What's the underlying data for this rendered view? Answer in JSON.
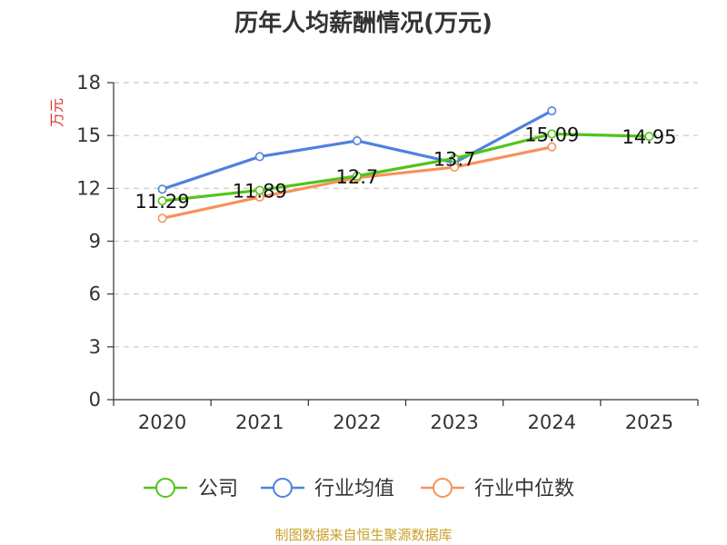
{
  "chart_data": {
    "type": "line",
    "title": "历年人均薪酬情况(万元)",
    "ylabel": "万元",
    "xlabel": "",
    "categories": [
      "2020",
      "2021",
      "2022",
      "2023",
      "2024",
      "2025"
    ],
    "ylim": [
      0,
      18
    ],
    "yticks": [
      0,
      3,
      6,
      9,
      12,
      15,
      18
    ],
    "grid": true,
    "legend_position": "bottom",
    "series": [
      {
        "name": "公司",
        "color": "#52c41a",
        "values": [
          11.29,
          11.89,
          12.7,
          13.7,
          15.09,
          14.95
        ],
        "labels": [
          "11.29",
          "11.89",
          "12.7",
          "13.7",
          "15.09",
          "14.95"
        ]
      },
      {
        "name": "行业均值",
        "color": "#4f81e0",
        "values": [
          11.95,
          13.8,
          14.7,
          13.45,
          16.4,
          null
        ]
      },
      {
        "name": "行业中位数",
        "color": "#f7915a",
        "values": [
          10.3,
          11.5,
          12.6,
          13.2,
          14.35,
          null
        ]
      }
    ]
  },
  "footer": {
    "source": "制图数据来自恒生聚源数据库"
  }
}
